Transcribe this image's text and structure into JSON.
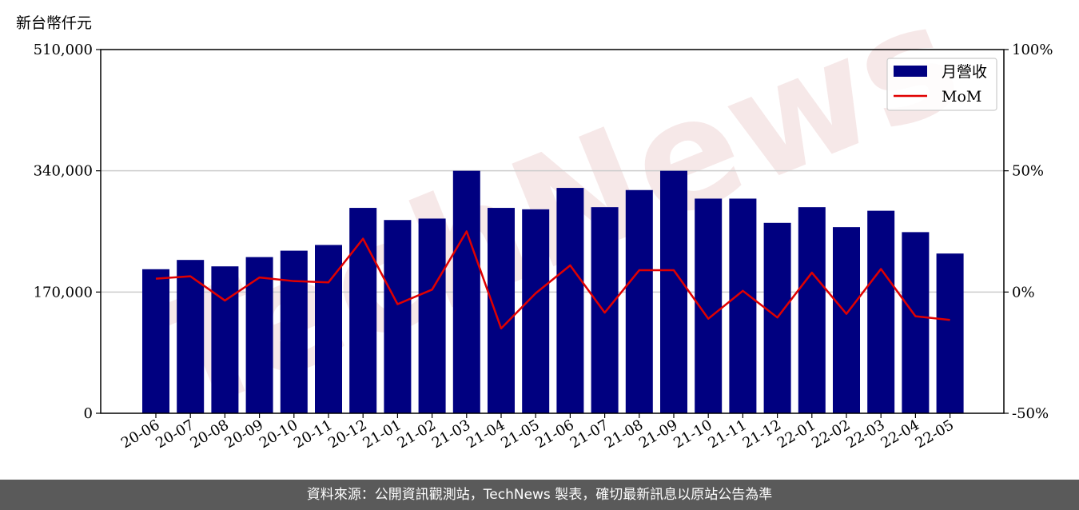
{
  "unit_label": "新台幣仟元",
  "footer_text": "資料來源：公開資訊觀測站，TechNews 製表，確切最新訊息以原站公告為準",
  "watermark_text": "TechNews",
  "chart_data": {
    "type": "bar",
    "title": "",
    "xlabel": "",
    "ylabel": "新台幣仟元",
    "categories": [
      "20-06",
      "20-07",
      "20-08",
      "20-09",
      "20-10",
      "20-11",
      "20-12",
      "21-01",
      "21-02",
      "21-03",
      "21-04",
      "21-05",
      "21-06",
      "21-07",
      "21-08",
      "21-09",
      "21-10",
      "21-11",
      "21-12",
      "22-01",
      "22-02",
      "22-03",
      "22-04",
      "22-05"
    ],
    "series": [
      {
        "name": "月營收",
        "type": "bar",
        "axis": "left",
        "color": "#000080",
        "values": [
          202000,
          215000,
          206000,
          219000,
          228000,
          236000,
          288000,
          271000,
          273000,
          340000,
          288000,
          286000,
          316000,
          289000,
          313000,
          340000,
          301000,
          301000,
          267000,
          289000,
          261000,
          284000,
          254000,
          224000
        ]
      },
      {
        "name": "MoM",
        "type": "line",
        "axis": "right",
        "color": "#e00000",
        "values": [
          5.5,
          6.5,
          -3.5,
          6.0,
          4.5,
          4.0,
          22.0,
          -5.0,
          1.0,
          25.0,
          -15.0,
          -0.5,
          11.0,
          -8.5,
          9.0,
          9.0,
          -11.0,
          0.5,
          -10.5,
          8.0,
          -9.0,
          9.5,
          -10.0,
          -11.5
        ]
      }
    ],
    "y_left": {
      "lim": [
        0,
        510000
      ],
      "ticks": [
        0,
        170000,
        340000,
        510000
      ],
      "tick_labels": [
        "0",
        "170,000",
        "340,000",
        "510,000"
      ]
    },
    "y_right": {
      "lim": [
        -50,
        100
      ],
      "ticks": [
        -50,
        0,
        50,
        100
      ],
      "tick_labels": [
        "-50%",
        "0%",
        "50%",
        "100%"
      ]
    },
    "grid": "horizontal",
    "legend": {
      "placement": "top-right",
      "entries": [
        "月營收",
        "MoM"
      ]
    }
  }
}
